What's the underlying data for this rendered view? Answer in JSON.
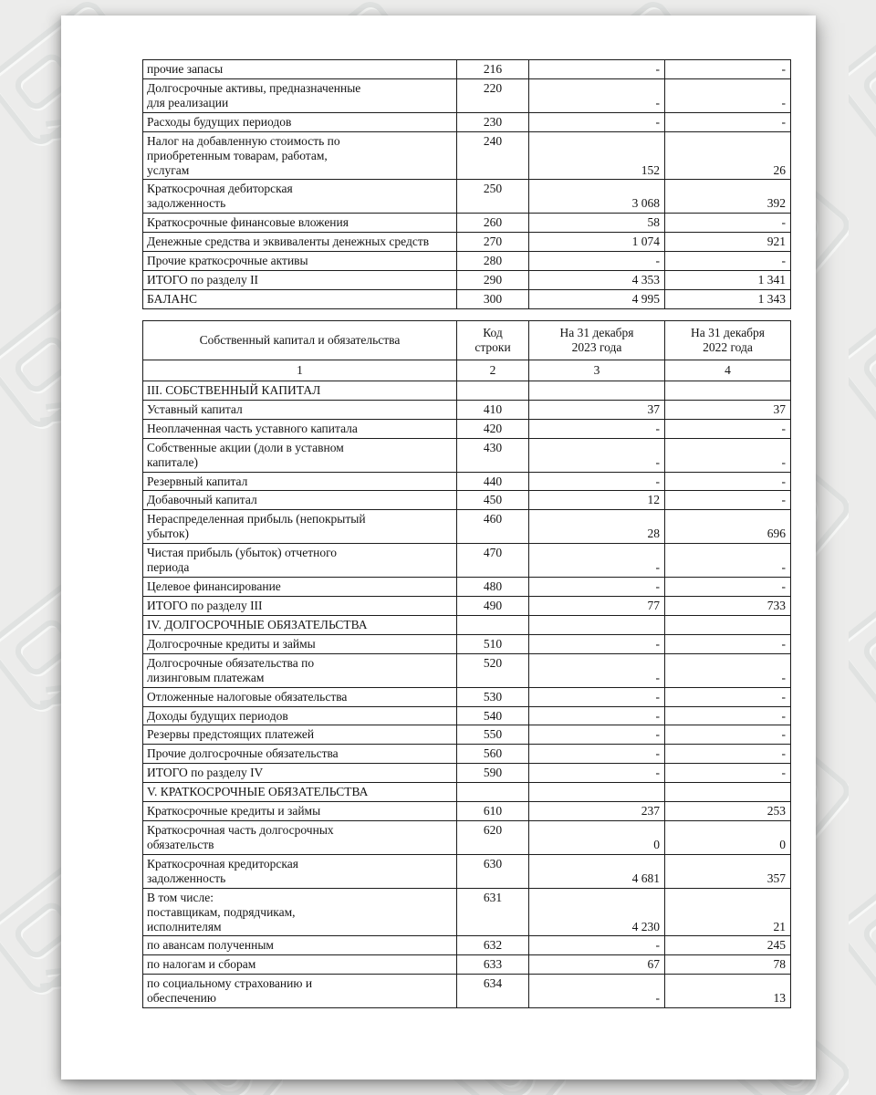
{
  "colors": {
    "canvas_background": "#ececeb",
    "page_background": "#ffffff",
    "table_border": "#1c1c1c",
    "pattern_stroke_dark": "#e0e2e1",
    "pattern_stroke_light": "#f8f9f8"
  },
  "table1": {
    "rows": [
      {
        "label": "прочие запасы",
        "code": "216",
        "y2023": "-",
        "y2022": "-"
      },
      {
        "label": "Долгосрочные активы, предназначенные\nдля реализации",
        "code": "220",
        "y2023": "-",
        "y2022": "-"
      },
      {
        "label": "Расходы будущих периодов",
        "code": "230",
        "y2023": "-",
        "y2022": "-"
      },
      {
        "label": "Налог на добавленную стоимость по\nприобретенным товарам, работам,\nуслугам",
        "code": "240",
        "y2023": "152",
        "y2022": "26"
      },
      {
        "label": "Краткосрочная дебиторская\nзадолженность",
        "code": "250",
        "y2023": "3 068",
        "y2022": "392"
      },
      {
        "label": "Краткосрочные финансовые вложения",
        "code": "260",
        "y2023": "58",
        "y2022": "-"
      },
      {
        "label": "Денежные средства и эквиваленты денежных средств",
        "code": "270",
        "y2023": "1 074",
        "y2022": "921"
      },
      {
        "label": "Прочие краткосрочные активы",
        "code": "280",
        "y2023": "-",
        "y2022": "-"
      },
      {
        "label": "ИТОГО по разделу II",
        "code": "290",
        "y2023": "4 353",
        "y2022": "1 341"
      },
      {
        "label": "БАЛАНС",
        "code": "300",
        "y2023": "4 995",
        "y2022": "1 343"
      }
    ]
  },
  "table2": {
    "header": {
      "col1": "Собственный капитал и обязательства",
      "col2": "Код\nстроки",
      "col3": "На 31 декабря\n2023 года",
      "col4": "На 31 декабря\n2022 года"
    },
    "column_numbers": [
      "1",
      "2",
      "3",
      "4"
    ],
    "rows": [
      {
        "type": "section",
        "label": "III. СОБСТВЕННЫЙ КАПИТАЛ"
      },
      {
        "type": "data",
        "label": "Уставный капитал",
        "code": "410",
        "y2023": "37",
        "y2022": "37"
      },
      {
        "type": "data",
        "label": "Неоплаченная часть уставного капитала",
        "code": "420",
        "y2023": "-",
        "y2022": "-"
      },
      {
        "type": "data",
        "label": "Собственные акции (доли в уставном\nкапитале)",
        "code": "430",
        "y2023": "-",
        "y2022": "-"
      },
      {
        "type": "data",
        "label": "Резервный капитал",
        "code": "440",
        "y2023": "-",
        "y2022": "-"
      },
      {
        "type": "data",
        "label": "Добавочный капитал",
        "code": "450",
        "y2023": "12",
        "y2022": "-"
      },
      {
        "type": "data",
        "label": "Нераспределенная прибыль (непокрытый\nубыток)",
        "code": "460",
        "y2023": "28",
        "y2022": "696"
      },
      {
        "type": "data",
        "label": "Чистая прибыль (убыток) отчетного\nпериода",
        "code": "470",
        "y2023": "-",
        "y2022": "-"
      },
      {
        "type": "data",
        "label": "Целевое финансирование",
        "code": "480",
        "y2023": "-",
        "y2022": "-"
      },
      {
        "type": "data",
        "label": "ИТОГО по разделу III",
        "code": "490",
        "y2023": "77",
        "y2022": "733"
      },
      {
        "type": "section",
        "label": "IV. ДОЛГОСРОЧНЫЕ ОБЯЗАТЕЛЬСТВА"
      },
      {
        "type": "data",
        "label": "Долгосрочные кредиты и займы",
        "code": "510",
        "y2023": "-",
        "y2022": "-"
      },
      {
        "type": "data",
        "label": "Долгосрочные обязательства по\nлизинговым платежам",
        "code": "520",
        "y2023": "-",
        "y2022": "-"
      },
      {
        "type": "data",
        "label": "Отложенные налоговые обязательства",
        "code": "530",
        "y2023": "-",
        "y2022": "-"
      },
      {
        "type": "data",
        "label": "Доходы будущих периодов",
        "code": "540",
        "y2023": "-",
        "y2022": "-"
      },
      {
        "type": "data",
        "label": "Резервы предстоящих платежей",
        "code": "550",
        "y2023": "-",
        "y2022": "-"
      },
      {
        "type": "data",
        "label": "Прочие долгосрочные обязательства",
        "code": "560",
        "y2023": "-",
        "y2022": "-"
      },
      {
        "type": "data",
        "label": "ИТОГО по разделу IV",
        "code": "590",
        "y2023": "-",
        "y2022": "-"
      },
      {
        "type": "section",
        "label": "V. КРАТКОСРОЧНЫЕ ОБЯЗАТЕЛЬСТВА"
      },
      {
        "type": "data",
        "label": "Краткосрочные кредиты и займы",
        "code": "610",
        "y2023": "237",
        "y2022": "253"
      },
      {
        "type": "data",
        "label": "Краткосрочная часть долгосрочных\nобязательств",
        "code": "620",
        "y2023": "0",
        "y2022": "0"
      },
      {
        "type": "data",
        "label": "Краткосрочная кредиторская\nзадолженность",
        "code": "630",
        "y2023": "4 681",
        "y2022": "357"
      },
      {
        "type": "data",
        "label": "В том числе:\nпоставщикам, подрядчикам,\nисполнителям",
        "code": "631",
        "y2023": "4 230",
        "y2022": "21"
      },
      {
        "type": "data",
        "label": "по авансам полученным",
        "code": "632",
        "y2023": "-",
        "y2022": "245"
      },
      {
        "type": "data",
        "label": "по налогам и сборам",
        "code": "633",
        "y2023": "67",
        "y2022": "78"
      },
      {
        "type": "data",
        "label": "по социальному страхованию и\nобеспечению",
        "code": "634",
        "y2023": "-",
        "y2022": "13"
      }
    ]
  }
}
